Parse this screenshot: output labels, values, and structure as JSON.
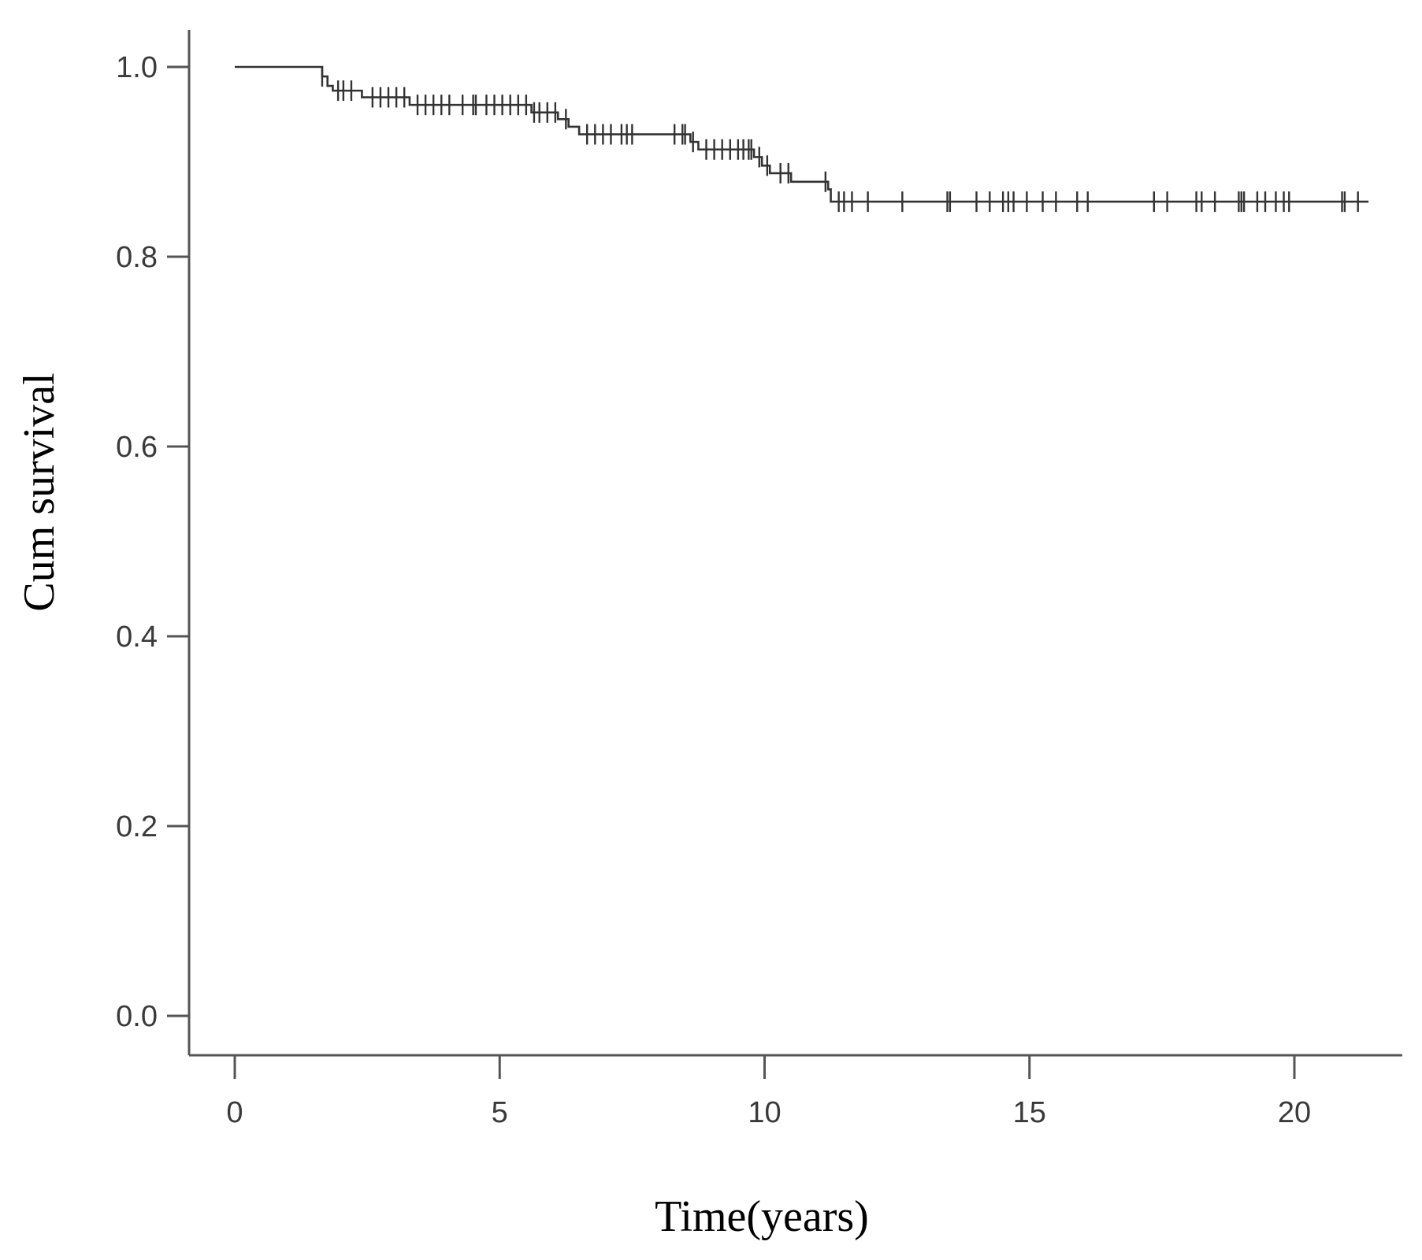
{
  "chart_data": {
    "type": "line",
    "subtype": "kaplan-meier",
    "title": "",
    "xlabel": "Time(years)",
    "ylabel": "Cum survival",
    "xlim": [
      0,
      21.5
    ],
    "ylim": [
      0.0,
      1.0
    ],
    "x_ticks": [
      0,
      5,
      10,
      15,
      20
    ],
    "x_tick_labels": [
      "0",
      "5",
      "10",
      "15",
      "20"
    ],
    "y_ticks": [
      0.0,
      0.2,
      0.4,
      0.6,
      0.8,
      1.0
    ],
    "y_tick_labels": [
      "0.0",
      "0.2",
      "0.4",
      "0.6",
      "0.8",
      "1.0"
    ],
    "grid": false,
    "legend": "none",
    "line_color": "#333333",
    "series": [
      {
        "steps": [
          [
            0.0,
            1.0
          ],
          [
            1.65,
            0.99
          ],
          [
            1.75,
            0.98
          ],
          [
            1.85,
            0.975
          ],
          [
            2.4,
            0.968
          ],
          [
            3.3,
            0.96
          ],
          [
            5.6,
            0.952
          ],
          [
            6.1,
            0.945
          ],
          [
            6.3,
            0.937
          ],
          [
            6.5,
            0.929
          ],
          [
            8.6,
            0.921
          ],
          [
            8.75,
            0.913
          ],
          [
            9.8,
            0.905
          ],
          [
            9.95,
            0.896
          ],
          [
            10.1,
            0.888
          ],
          [
            10.5,
            0.879
          ],
          [
            11.2,
            0.871
          ],
          [
            11.25,
            0.858
          ],
          [
            21.4,
            0.858
          ]
        ],
        "censor_times": [
          1.65,
          1.95,
          2.05,
          2.2,
          2.6,
          2.75,
          2.9,
          3.05,
          3.2,
          3.45,
          3.6,
          3.75,
          3.9,
          4.05,
          4.3,
          4.5,
          4.55,
          4.75,
          4.9,
          5.05,
          5.2,
          5.35,
          5.5,
          5.65,
          5.75,
          5.9,
          6.05,
          6.25,
          6.65,
          6.8,
          6.95,
          7.1,
          7.3,
          7.4,
          7.5,
          8.3,
          8.45,
          8.5,
          8.65,
          8.9,
          9.05,
          9.2,
          9.35,
          9.5,
          9.6,
          9.7,
          9.75,
          9.9,
          10.05,
          10.3,
          10.45,
          11.15,
          11.4,
          11.5,
          11.65,
          11.95,
          12.6,
          13.45,
          13.5,
          14.0,
          14.25,
          14.5,
          14.6,
          14.7,
          14.95,
          15.25,
          15.5,
          15.9,
          16.1,
          17.35,
          17.6,
          18.15,
          18.25,
          18.5,
          18.95,
          19.0,
          19.05,
          19.3,
          19.45,
          19.65,
          19.8,
          19.9,
          20.9,
          20.95,
          21.2
        ]
      }
    ]
  }
}
